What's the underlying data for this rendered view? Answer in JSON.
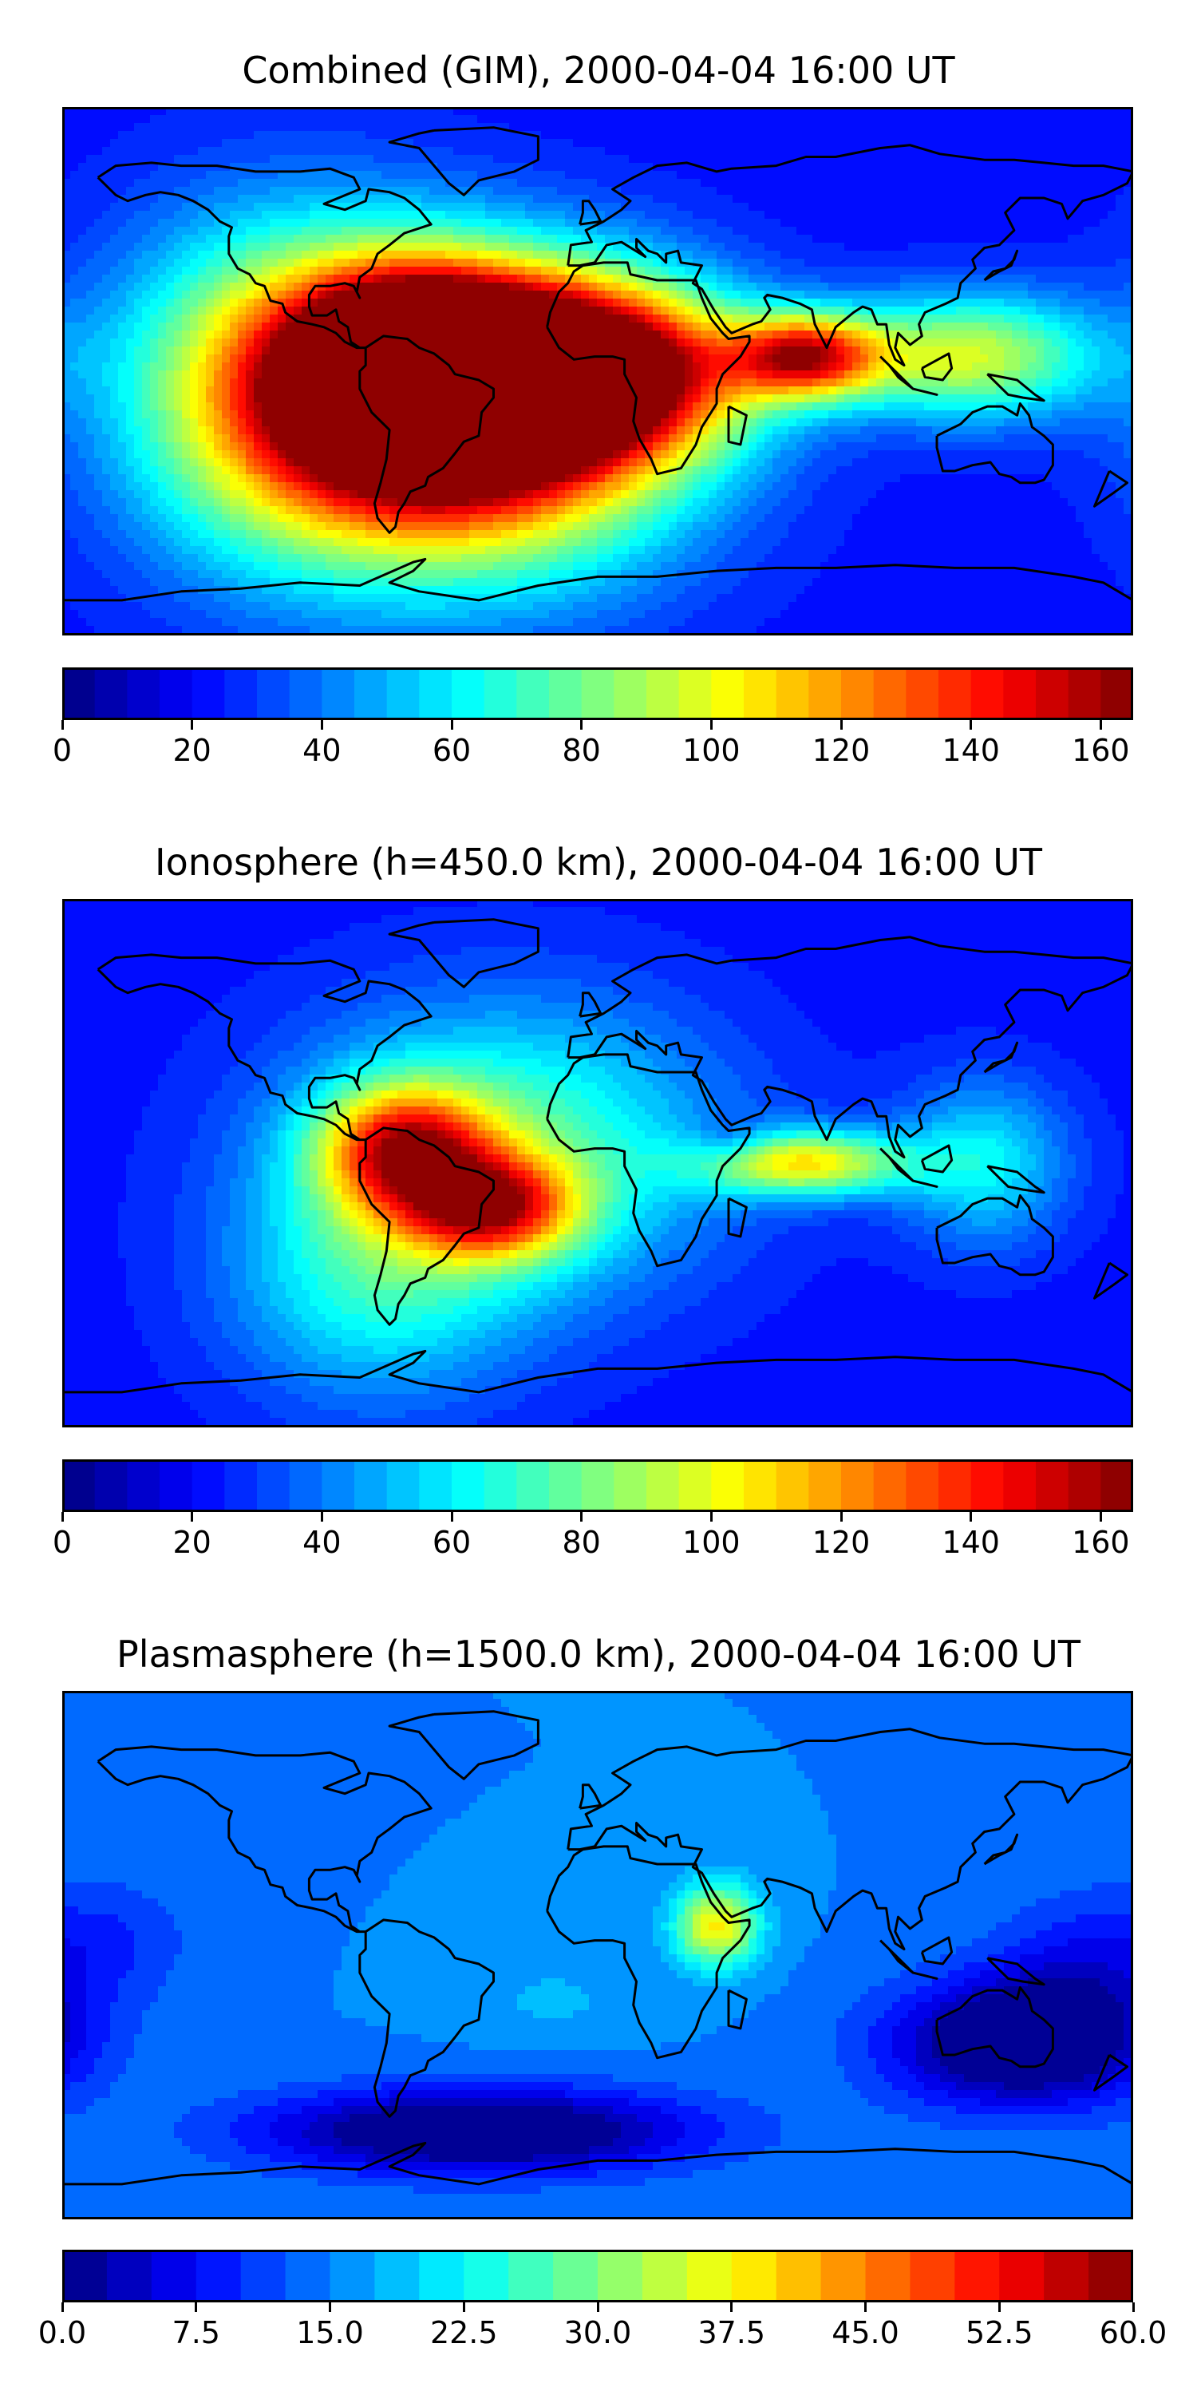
{
  "map": {
    "projection": "plate-carree",
    "lon_range": [
      -180,
      180
    ],
    "lat_range": [
      -90,
      90
    ],
    "coastlines": true,
    "colormap": "jet",
    "panels": [
      {
        "title": "Combined (GIM), 2000-04-04 16:00 UT",
        "colorbar": {
          "min": 0,
          "max": 165,
          "levels": 33,
          "ticks": [
            "0",
            "20",
            "40",
            "60",
            "80",
            "100",
            "120",
            "140",
            "160"
          ],
          "tick_values": [
            0,
            20,
            40,
            60,
            80,
            100,
            120,
            140,
            160
          ]
        },
        "field": {
          "background": 22,
          "features": [
            {
              "lon": -45,
              "lat": -5,
              "value": 150,
              "sx": 45,
              "sy": 30
            },
            {
              "lon": -60,
              "lat": 0,
              "value": 150,
              "sx": 25,
              "sy": 20
            },
            {
              "lon": 0,
              "lat": 0,
              "value": 140,
              "sx": 35,
              "sy": 20
            },
            {
              "lon": 70,
              "lat": 5,
              "value": 130,
              "sx": 18,
              "sy": 10
            },
            {
              "lon": 125,
              "lat": 5,
              "value": 95,
              "sx": 30,
              "sy": 15
            },
            {
              "lon": -105,
              "lat": -5,
              "value": 95,
              "sx": 40,
              "sy": 40
            },
            {
              "lon": -40,
              "lat": -30,
              "value": 85,
              "sx": 50,
              "sy": 35
            }
          ]
        }
      },
      {
        "title": "Ionosphere  (h=450.0 km), 2000-04-04 16:00 UT",
        "colorbar": {
          "min": 0,
          "max": 165,
          "levels": 33,
          "ticks": [
            "0",
            "20",
            "40",
            "60",
            "80",
            "100",
            "120",
            "140",
            "160"
          ],
          "tick_values": [
            0,
            20,
            40,
            60,
            80,
            100,
            120,
            140,
            160
          ]
        },
        "field": {
          "background": 22,
          "features": [
            {
              "lon": -65,
              "lat": 5,
              "value": 115,
              "sx": 20,
              "sy": 15
            },
            {
              "lon": -35,
              "lat": -15,
              "value": 110,
              "sx": 20,
              "sy": 12
            },
            {
              "lon": -30,
              "lat": 5,
              "value": 75,
              "sx": 50,
              "sy": 35
            },
            {
              "lon": -75,
              "lat": -40,
              "value": 60,
              "sx": 35,
              "sy": 30
            },
            {
              "lon": 70,
              "lat": 0,
              "value": 100,
              "sx": 25,
              "sy": 8
            },
            {
              "lon": 130,
              "lat": 0,
              "value": 60,
              "sx": 20,
              "sy": 20
            },
            {
              "lon": 45,
              "lat": 8,
              "value": 5,
              "sx": 10,
              "sy": 6
            }
          ]
        }
      },
      {
        "title": "Plasmasphere (h=1500.0 km), 2000-04-04 16:00 UT",
        "colorbar": {
          "min": 0,
          "max": 60,
          "levels": 24,
          "ticks": [
            "0.0",
            "7.5",
            "15.0",
            "22.5",
            "30.0",
            "37.5",
            "45.0",
            "52.5",
            "60.0"
          ],
          "tick_values": [
            0,
            7.5,
            15,
            22.5,
            30,
            37.5,
            45,
            52.5,
            60
          ]
        },
        "field": {
          "background": 15,
          "features": [
            {
              "lon": 40,
              "lat": 10,
              "value": 38,
              "sx": 10,
              "sy": 10
            },
            {
              "lon": 20,
              "lat": -10,
              "value": 15,
              "sx": 40,
              "sy": 18
            },
            {
              "lon": -15,
              "lat": -15,
              "value": 18,
              "sx": 20,
              "sy": 10
            },
            {
              "lon": -60,
              "lat": -10,
              "value": 15,
              "sx": 25,
              "sy": 15
            },
            {
              "lon": -165,
              "lat": 5,
              "value": 10,
              "sx": 20,
              "sy": 15
            },
            {
              "lon": 160,
              "lat": -10,
              "value": 8,
              "sx": 20,
              "sy": 20
            },
            {
              "lon": -40,
              "lat": -60,
              "value": -5,
              "sx": 50,
              "sy": 10
            },
            {
              "lon": 140,
              "lat": -30,
              "value": -4,
              "sx": 30,
              "sy": 15
            }
          ]
        }
      }
    ]
  }
}
